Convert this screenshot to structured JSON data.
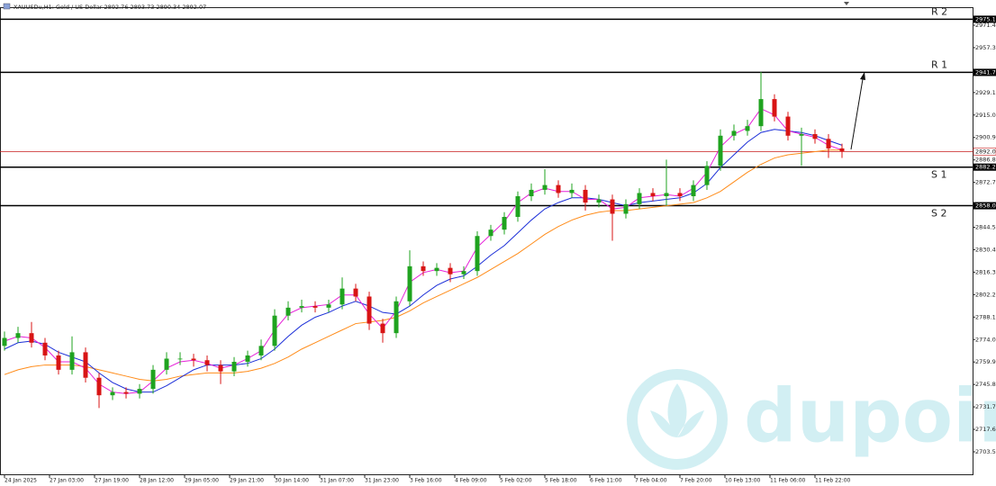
{
  "chart_data": {
    "type": "candlestick",
    "title": "XAUUSDu,H1:  Gold / US Dollar  2892.76 2893.73 2890.34 2892.07",
    "ylim": [
      2688.8,
      2982.7
    ],
    "yticks": [
      {
        "value": 2971.4,
        "label": "2971.40"
      },
      {
        "value": 2957.3,
        "label": "2957.30"
      },
      {
        "value": 2929.1,
        "label": "2929.10"
      },
      {
        "value": 2915,
        "label": "2915.00"
      },
      {
        "value": 2900.9,
        "label": "2900.90"
      },
      {
        "value": 2886.8,
        "label": "2886.80"
      },
      {
        "value": 2872.7,
        "label": "2872.70"
      },
      {
        "value": 2844.5,
        "label": "2844.50"
      },
      {
        "value": 2830.4,
        "label": "2830.40"
      },
      {
        "value": 2816.3,
        "label": "2816.30"
      },
      {
        "value": 2802.2,
        "label": "2802.20"
      },
      {
        "value": 2788.1,
        "label": "2788.10"
      },
      {
        "value": 2774,
        "label": "2774.00"
      },
      {
        "value": 2759.9,
        "label": "2759.90"
      },
      {
        "value": 2745.8,
        "label": "2745.80"
      },
      {
        "value": 2731.7,
        "label": "2731.70"
      },
      {
        "value": 2717.6,
        "label": "2717.60"
      },
      {
        "value": 2703.5,
        "label": "2703.50"
      }
    ],
    "x_labels": [
      "24 Jan 2025",
      "27 Jan 03:00",
      "27 Jan 19:00",
      "28 Jan 12:00",
      "29 Jan 05:00",
      "29 Jan 21:00",
      "30 Jan 14:00",
      "31 Jan 07:00",
      "31 Jan 23:00",
      "3 Feb 16:00",
      "4 Feb 09:00",
      "5 Feb 02:00",
      "5 Feb 18:00",
      "6 Feb 11:00",
      "7 Feb 04:00",
      "7 Feb 20:00",
      "10 Feb 13:00",
      "11 Feb 06:00",
      "11 Feb 22:00"
    ],
    "up_color": "#1fa31f",
    "down_color": "#d81414",
    "open": [
      2770,
      2775,
      2778,
      2772,
      2764,
      2755,
      2766,
      2750,
      2739,
      2741,
      2740,
      2743,
      2755,
      2762,
      2762,
      2761,
      2758,
      2754,
      2760,
      2764,
      2770,
      2789,
      2794,
      2795,
      2794,
      2796,
      2806,
      2801,
      2784,
      2778,
      2798,
      2820,
      2817,
      2819,
      2815,
      2817,
      2839,
      2843,
      2851,
      2864,
      2868,
      2871,
      2866,
      2868,
      2860,
      2862,
      2853,
      2859,
      2866,
      2864,
      2866,
      2864,
      2871,
      2883,
      2902,
      2905,
      2908,
      2925,
      2914,
      2902,
      2903,
      2900,
      2894
    ],
    "high": [
      2779,
      2782,
      2785,
      2775,
      2767,
      2776,
      2769,
      2753,
      2744,
      2744,
      2746,
      2758,
      2766,
      2766,
      2765,
      2764,
      2761,
      2763,
      2767,
      2774,
      2793,
      2798,
      2799,
      2798,
      2799,
      2813,
      2809,
      2804,
      2787,
      2801,
      2830,
      2823,
      2822,
      2822,
      2820,
      2842,
      2846,
      2854,
      2867,
      2872,
      2881,
      2874,
      2872,
      2871,
      2865,
      2865,
      2862,
      2869,
      2869,
      2887,
      2869,
      2874,
      2886,
      2906,
      2909,
      2912,
      2942,
      2928,
      2917,
      2907,
      2906,
      2903,
      2897
    ],
    "low": [
      2767,
      2772,
      2769,
      2761,
      2752,
      2752,
      2747,
      2731,
      2736,
      2737,
      2737,
      2740,
      2752,
      2758,
      2757,
      2754,
      2746,
      2751,
      2757,
      2761,
      2767,
      2786,
      2791,
      2791,
      2791,
      2793,
      2798,
      2780,
      2772,
      2775,
      2795,
      2814,
      2814,
      2810,
      2812,
      2814,
      2836,
      2840,
      2848,
      2861,
      2865,
      2863,
      2863,
      2855,
      2857,
      2836,
      2850,
      2856,
      2861,
      2858,
      2861,
      2861,
      2868,
      2880,
      2899,
      2902,
      2905,
      2911,
      2899,
      2883,
      2897,
      2888,
      2888
    ],
    "close": [
      2775,
      2778,
      2772,
      2764,
      2755,
      2766,
      2750,
      2739,
      2741,
      2740,
      2743,
      2755,
      2762,
      2762,
      2761,
      2758,
      2754,
      2760,
      2764,
      2770,
      2789,
      2794,
      2795,
      2794,
      2796,
      2806,
      2801,
      2784,
      2778,
      2798,
      2820,
      2817,
      2819,
      2815,
      2817,
      2839,
      2843,
      2851,
      2864,
      2868,
      2871,
      2866,
      2868,
      2860,
      2862,
      2853,
      2859,
      2866,
      2864,
      2866,
      2864,
      2871,
      2883,
      2902,
      2905,
      2908,
      2925,
      2914,
      2902,
      2903,
      2900,
      2894,
      2892
    ],
    "series": [
      {
        "color": "#ff8c1a",
        "values": [
          2752,
          2755,
          2757,
          2758,
          2758,
          2758,
          2757,
          2755,
          2753,
          2751,
          2749,
          2748,
          2749,
          2751,
          2752,
          2753,
          2753,
          2753,
          2754,
          2756,
          2759,
          2763,
          2768,
          2772,
          2776,
          2780,
          2784,
          2785,
          2786,
          2788,
          2792,
          2797,
          2801,
          2805,
          2809,
          2813,
          2818,
          2823,
          2828,
          2834,
          2840,
          2845,
          2849,
          2852,
          2854,
          2855,
          2855,
          2856,
          2857,
          2858,
          2859,
          2860,
          2863,
          2867,
          2873,
          2879,
          2884,
          2888,
          2890,
          2891,
          2892,
          2893,
          2893
        ]
      },
      {
        "color": "#1c2fd8",
        "values": [
          2768,
          2772,
          2773,
          2771,
          2766,
          2763,
          2760,
          2753,
          2747,
          2743,
          2741,
          2741,
          2745,
          2750,
          2755,
          2758,
          2758,
          2758,
          2759,
          2762,
          2768,
          2776,
          2783,
          2788,
          2791,
          2795,
          2798,
          2795,
          2791,
          2790,
          2795,
          2802,
          2808,
          2812,
          2814,
          2820,
          2827,
          2833,
          2841,
          2849,
          2856,
          2860,
          2863,
          2863,
          2862,
          2860,
          2858,
          2860,
          2861,
          2862,
          2863,
          2866,
          2872,
          2882,
          2890,
          2898,
          2904,
          2906,
          2905,
          2904,
          2902,
          2899,
          2896
        ]
      },
      {
        "color": "#e620d8",
        "values": [
          2773,
          2776,
          2775,
          2769,
          2760,
          2760,
          2756,
          2746,
          2741,
          2740,
          2741,
          2748,
          2756,
          2760,
          2761,
          2759,
          2756,
          2758,
          2762,
          2767,
          2780,
          2790,
          2794,
          2795,
          2796,
          2802,
          2802,
          2790,
          2781,
          2792,
          2810,
          2816,
          2818,
          2816,
          2817,
          2832,
          2840,
          2848,
          2860,
          2866,
          2869,
          2867,
          2867,
          2862,
          2862,
          2856,
          2857,
          2863,
          2864,
          2865,
          2864,
          2869,
          2879,
          2895,
          2903,
          2907,
          2919,
          2915,
          2905,
          2903,
          2901,
          2896,
          2893
        ]
      }
    ],
    "levels": [
      {
        "name": "R 2",
        "value": 2975.13
      },
      {
        "name": "R 1",
        "value": 2941.76
      },
      {
        "name": "S 1",
        "value": 2882.27
      },
      {
        "name": "S 2",
        "value": 2858.04
      }
    ],
    "current_price": {
      "value": 2892.07,
      "color": "#c81e1e"
    },
    "watermark": "dupoin"
  }
}
